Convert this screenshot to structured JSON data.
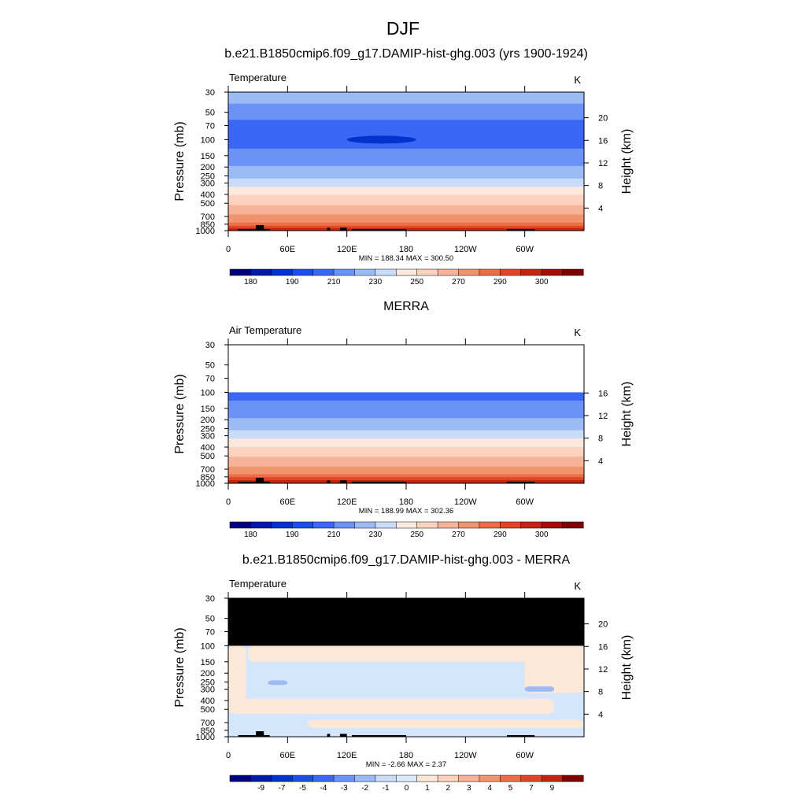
{
  "figure": {
    "title": "DJF"
  },
  "palette": {
    "temp_colors": [
      "#00007f",
      "#0019a6",
      "#0033cc",
      "#1a4ee6",
      "#3a68f5",
      "#6b93f7",
      "#9cbbf5",
      "#c9dcfa",
      "#fbe9dd",
      "#fbd2bd",
      "#f5b49a",
      "#f09470",
      "#eb6e47",
      "#e04626",
      "#c22412",
      "#a30f05",
      "#7f0000"
    ],
    "diff_colors": [
      "#00007f",
      "#0019a6",
      "#0033cc",
      "#1a4ee6",
      "#3a68f5",
      "#6b93f7",
      "#9cbbf5",
      "#c9dcfa",
      "#dce9fc",
      "#fde8d8",
      "#fbd2bd",
      "#f5b49a",
      "#f09470",
      "#eb6e47",
      "#e04626",
      "#c22412",
      "#7f0000"
    ],
    "missing_color": "#000000",
    "topo_color": "#000000"
  },
  "chart_data": [
    {
      "type": "heatmap",
      "title": "b.e21.B1850cmip6.f09_g17.DAMIP-hist-ghg.003 (yrs 1900-1924)",
      "left_label": "Temperature",
      "units": "K",
      "ylabel": "Pressure (mb)",
      "ylabel_right": "Height (km)",
      "pressure_ticks": [
        "30",
        "50",
        "70",
        "100",
        "150",
        "200",
        "250",
        "300",
        "400",
        "500",
        "700",
        "850",
        "1000"
      ],
      "height_ticks": [
        "4",
        "8",
        "12",
        "16",
        "20"
      ],
      "lon_ticks": [
        "0",
        "60E",
        "120E",
        "180",
        "120W",
        "60W"
      ],
      "stats": "MIN = 188.34  MAX = 300.50",
      "colorbar_labels": [
        "180",
        "190",
        "210",
        "230",
        "250",
        "270",
        "290",
        "300"
      ],
      "levels": [
        {
          "p": 30,
          "t": 230
        },
        {
          "p": 50,
          "t": 213
        },
        {
          "p": 70,
          "t": 208
        },
        {
          "p": 100,
          "t": 205
        },
        {
          "p": 150,
          "t": 214
        },
        {
          "p": 200,
          "t": 221
        },
        {
          "p": 250,
          "t": 227
        },
        {
          "p": 300,
          "t": 236
        },
        {
          "p": 400,
          "t": 250
        },
        {
          "p": 500,
          "t": 258
        },
        {
          "p": 700,
          "t": 272
        },
        {
          "p": 850,
          "t": 283
        },
        {
          "p": 1000,
          "t": 293
        }
      ],
      "cold_core": {
        "lon": 155,
        "p": 100,
        "t": 188
      }
    },
    {
      "type": "heatmap",
      "title": "MERRA",
      "left_label": "Air Temperature",
      "units": "K",
      "ylabel": "Pressure (mb)",
      "ylabel_right": "Height (km)",
      "pressure_ticks": [
        "30",
        "50",
        "70",
        "100",
        "150",
        "200",
        "250",
        "300",
        "400",
        "500",
        "700",
        "850",
        "1000"
      ],
      "height_ticks": [
        "4",
        "8",
        "12",
        "16"
      ],
      "lon_ticks": [
        "0",
        "60E",
        "120E",
        "180",
        "120W",
        "60W"
      ],
      "stats": "MIN = 188.99  MAX = 302.36",
      "colorbar_labels": [
        "180",
        "190",
        "210",
        "230",
        "250",
        "270",
        "290",
        "300"
      ],
      "blank_above_p": 100,
      "levels": [
        {
          "p": 100,
          "t": 206
        },
        {
          "p": 150,
          "t": 214
        },
        {
          "p": 200,
          "t": 221
        },
        {
          "p": 250,
          "t": 228
        },
        {
          "p": 300,
          "t": 237
        },
        {
          "p": 400,
          "t": 250
        },
        {
          "p": 500,
          "t": 259
        },
        {
          "p": 700,
          "t": 273
        },
        {
          "p": 850,
          "t": 284
        },
        {
          "p": 1000,
          "t": 295
        }
      ]
    },
    {
      "type": "heatmap",
      "title": "b.e21.B1850cmip6.f09_g17.DAMIP-hist-ghg.003 - MERRA",
      "left_label": "Temperature",
      "units": "K",
      "ylabel": "Pressure (mb)",
      "ylabel_right": "Height (km)",
      "pressure_ticks": [
        "30",
        "50",
        "70",
        "100",
        "150",
        "200",
        "250",
        "300",
        "400",
        "500",
        "700",
        "850",
        "1000"
      ],
      "height_ticks": [
        "4",
        "8",
        "12",
        "16",
        "20"
      ],
      "lon_ticks": [
        "0",
        "60E",
        "120E",
        "180",
        "120W",
        "60W"
      ],
      "stats": "MIN = -2.66  MAX =  2.37",
      "colorbar_labels": [
        "-9",
        "-7",
        "-5",
        "-4",
        "-3",
        "-2",
        "-1",
        "0",
        "1",
        "2",
        "3",
        "4",
        "5",
        "7",
        "9"
      ],
      "missing_above_p": 100,
      "background_diff": -0.5,
      "positive_regions": [
        {
          "name": "west-upper",
          "lon": [
            0,
            18
          ],
          "p": [
            100,
            400
          ],
          "d": 0.5
        },
        {
          "name": "tropopause-band",
          "lon": [
            20,
            330
          ],
          "p": [
            100,
            150
          ],
          "d": 0.4
        },
        {
          "name": "east-upper",
          "lon": [
            300,
            360
          ],
          "p": [
            100,
            330
          ],
          "d": 0.5
        },
        {
          "name": "mid-band",
          "lon": [
            0,
            330
          ],
          "p": [
            380,
            560
          ],
          "d": 0.4
        },
        {
          "name": "lower-band",
          "lon": [
            80,
            360
          ],
          "p": [
            650,
            800
          ],
          "d": 0.3
        }
      ],
      "negative_regions": [
        {
          "name": "low-west",
          "lon": [
            0,
            70
          ],
          "p": [
            800,
            1000
          ],
          "d": -0.6
        },
        {
          "name": "mid-blob",
          "lon": [
            40,
            60
          ],
          "p": [
            240,
            270
          ],
          "d": -1.5
        },
        {
          "name": "east-blob",
          "lon": [
            300,
            330
          ],
          "p": [
            280,
            320
          ],
          "d": -1.5
        }
      ]
    }
  ],
  "topography": [
    {
      "lon": [
        10,
        42
      ],
      "p": 960
    },
    {
      "lon": [
        28,
        36
      ],
      "p": 870
    },
    {
      "lon": [
        100,
        103
      ],
      "p": 930
    },
    {
      "lon": [
        113,
        120
      ],
      "p": 930
    },
    {
      "lon": [
        125,
        180
      ],
      "p": 960
    },
    {
      "lon": [
        282,
        310
      ],
      "p": 960
    }
  ]
}
